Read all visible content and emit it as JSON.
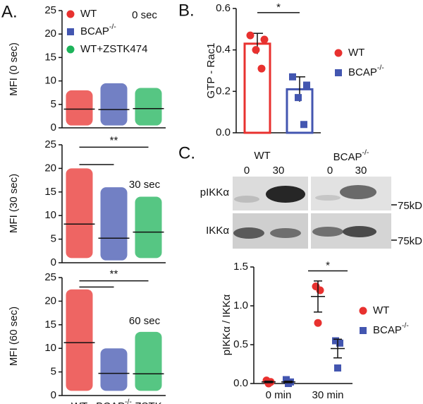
{
  "panels": [
    "A.",
    "B.",
    "C."
  ],
  "blot": {
    "groups": [
      "WT",
      {
        "text": "BCAP",
        "sup": "-/-"
      }
    ],
    "lanes": [
      "0",
      "30",
      "0",
      "30"
    ],
    "rows": [
      "pIKKα",
      "IKKα"
    ],
    "markers": [
      "75kD",
      "75kD"
    ]
  },
  "chart_data": [
    {
      "type": "dotplot",
      "y_label": "MFI (0 sec)",
      "annotation": "0 sec",
      "ylim": [
        0,
        25
      ],
      "yticks": [
        0,
        5,
        10,
        15,
        20,
        25
      ],
      "series": [
        {
          "name": "WT",
          "marker": "circle",
          "color": "#e8312f",
          "mean": 4,
          "min": 0.5,
          "max": 8
        },
        {
          "name": {
            "text": "BCAP",
            "sup": "-/-"
          },
          "marker": "square",
          "color": "#4356b0",
          "mean": 3.9,
          "min": 0.5,
          "max": 9.5
        },
        {
          "name": "WT+ZSTK474",
          "marker": "circle",
          "color": "#1db35a",
          "mean": 4.1,
          "min": 0.5,
          "max": 8.5
        }
      ]
    },
    {
      "type": "dotplot",
      "y_label": "MFI (30 sec)",
      "annotation": "30 sec",
      "ylim": [
        0,
        25
      ],
      "yticks": [
        0,
        5,
        10,
        15,
        20,
        25
      ],
      "brackets": [
        {
          "y": 24.5,
          "x": [
            0,
            2
          ],
          "label": "**"
        },
        {
          "y": 20.8,
          "x": [
            0,
            1
          ]
        }
      ],
      "series": [
        {
          "color": "#e8312f",
          "mean": 8.2,
          "min": 1,
          "max": 20
        },
        {
          "color": "#4356b0",
          "mean": 5.2,
          "min": 0.5,
          "max": 16
        },
        {
          "color": "#1db35a",
          "mean": 6.5,
          "min": 1,
          "max": 14
        }
      ]
    },
    {
      "type": "dotplot",
      "y_label": "MFI (60 sec)",
      "annotation": "60 sec",
      "ylim": [
        0,
        25
      ],
      "yticks": [
        0,
        5,
        10,
        15,
        20,
        25
      ],
      "categories": [
        "WT",
        {
          "text": "BCAP",
          "sup": "-/-"
        },
        "ZSTK"
      ],
      "brackets": [
        {
          "y": 24.3,
          "x": [
            0,
            2
          ],
          "label": "**"
        },
        {
          "y": 23,
          "x": [
            0,
            1
          ]
        }
      ],
      "series": [
        {
          "color": "#e8312f",
          "mean": 11.2,
          "min": 1,
          "max": 22.5
        },
        {
          "color": "#4356b0",
          "mean": 4.7,
          "min": 1,
          "max": 10
        },
        {
          "color": "#1db35a",
          "mean": 4.6,
          "min": 1,
          "max": 13.5
        }
      ]
    },
    {
      "type": "bar",
      "y_label": "GTP - Rac1",
      "ylim": [
        0,
        0.6
      ],
      "yticks": [
        {
          "value": 0,
          "label": "0.0"
        },
        0.2,
        0.4,
        0.6
      ],
      "brackets": [
        {
          "y": 0.58,
          "x": [
            0,
            1
          ],
          "label": "*"
        }
      ],
      "series": [
        {
          "name": "WT",
          "marker": "circle",
          "color": "#e8312f",
          "value": 0.43,
          "error": 0.05,
          "points": [
            0.47,
            0.45,
            0.4,
            0.31
          ]
        },
        {
          "name": {
            "text": "BCAP",
            "sup": "-/-"
          },
          "marker": "square",
          "color": "#4356b0",
          "value": 0.21,
          "error": 0.06,
          "points": [
            0.27,
            0.23,
            0.17,
            0.04
          ]
        }
      ]
    },
    {
      "type": "dotmean",
      "y_label": "pIKKα / IKKα",
      "ylim": [
        0,
        1.5
      ],
      "yticks": [
        {
          "value": 0,
          "label": "0.0"
        },
        0.5,
        {
          "value": 1,
          "label": "1.0"
        },
        1.5
      ],
      "categories": [
        "0 min",
        "30 min"
      ],
      "brackets": [
        {
          "y": 1.45,
          "x": [
            0,
            1
          ],
          "category": 1,
          "label": "*"
        }
      ],
      "series": [
        {
          "name": "WT",
          "marker": "circle",
          "color": "#e8312f",
          "means": [
            0.02,
            1.12
          ],
          "errors": [
            0.01,
            0.2
          ],
          "points": [
            [
              0.04,
              0.02,
              0
            ],
            [
              1.25,
              1.2,
              0.78
            ]
          ]
        },
        {
          "name": {
            "text": "BCAP",
            "sup": "-/-"
          },
          "marker": "square",
          "color": "#4356b0",
          "means": [
            0.02,
            0.45
          ],
          "errors": [
            0.01,
            0.12
          ],
          "points": [
            [
              0.05,
              0.02,
              0
            ],
            [
              0.55,
              0.52,
              0.2
            ]
          ]
        }
      ]
    }
  ]
}
